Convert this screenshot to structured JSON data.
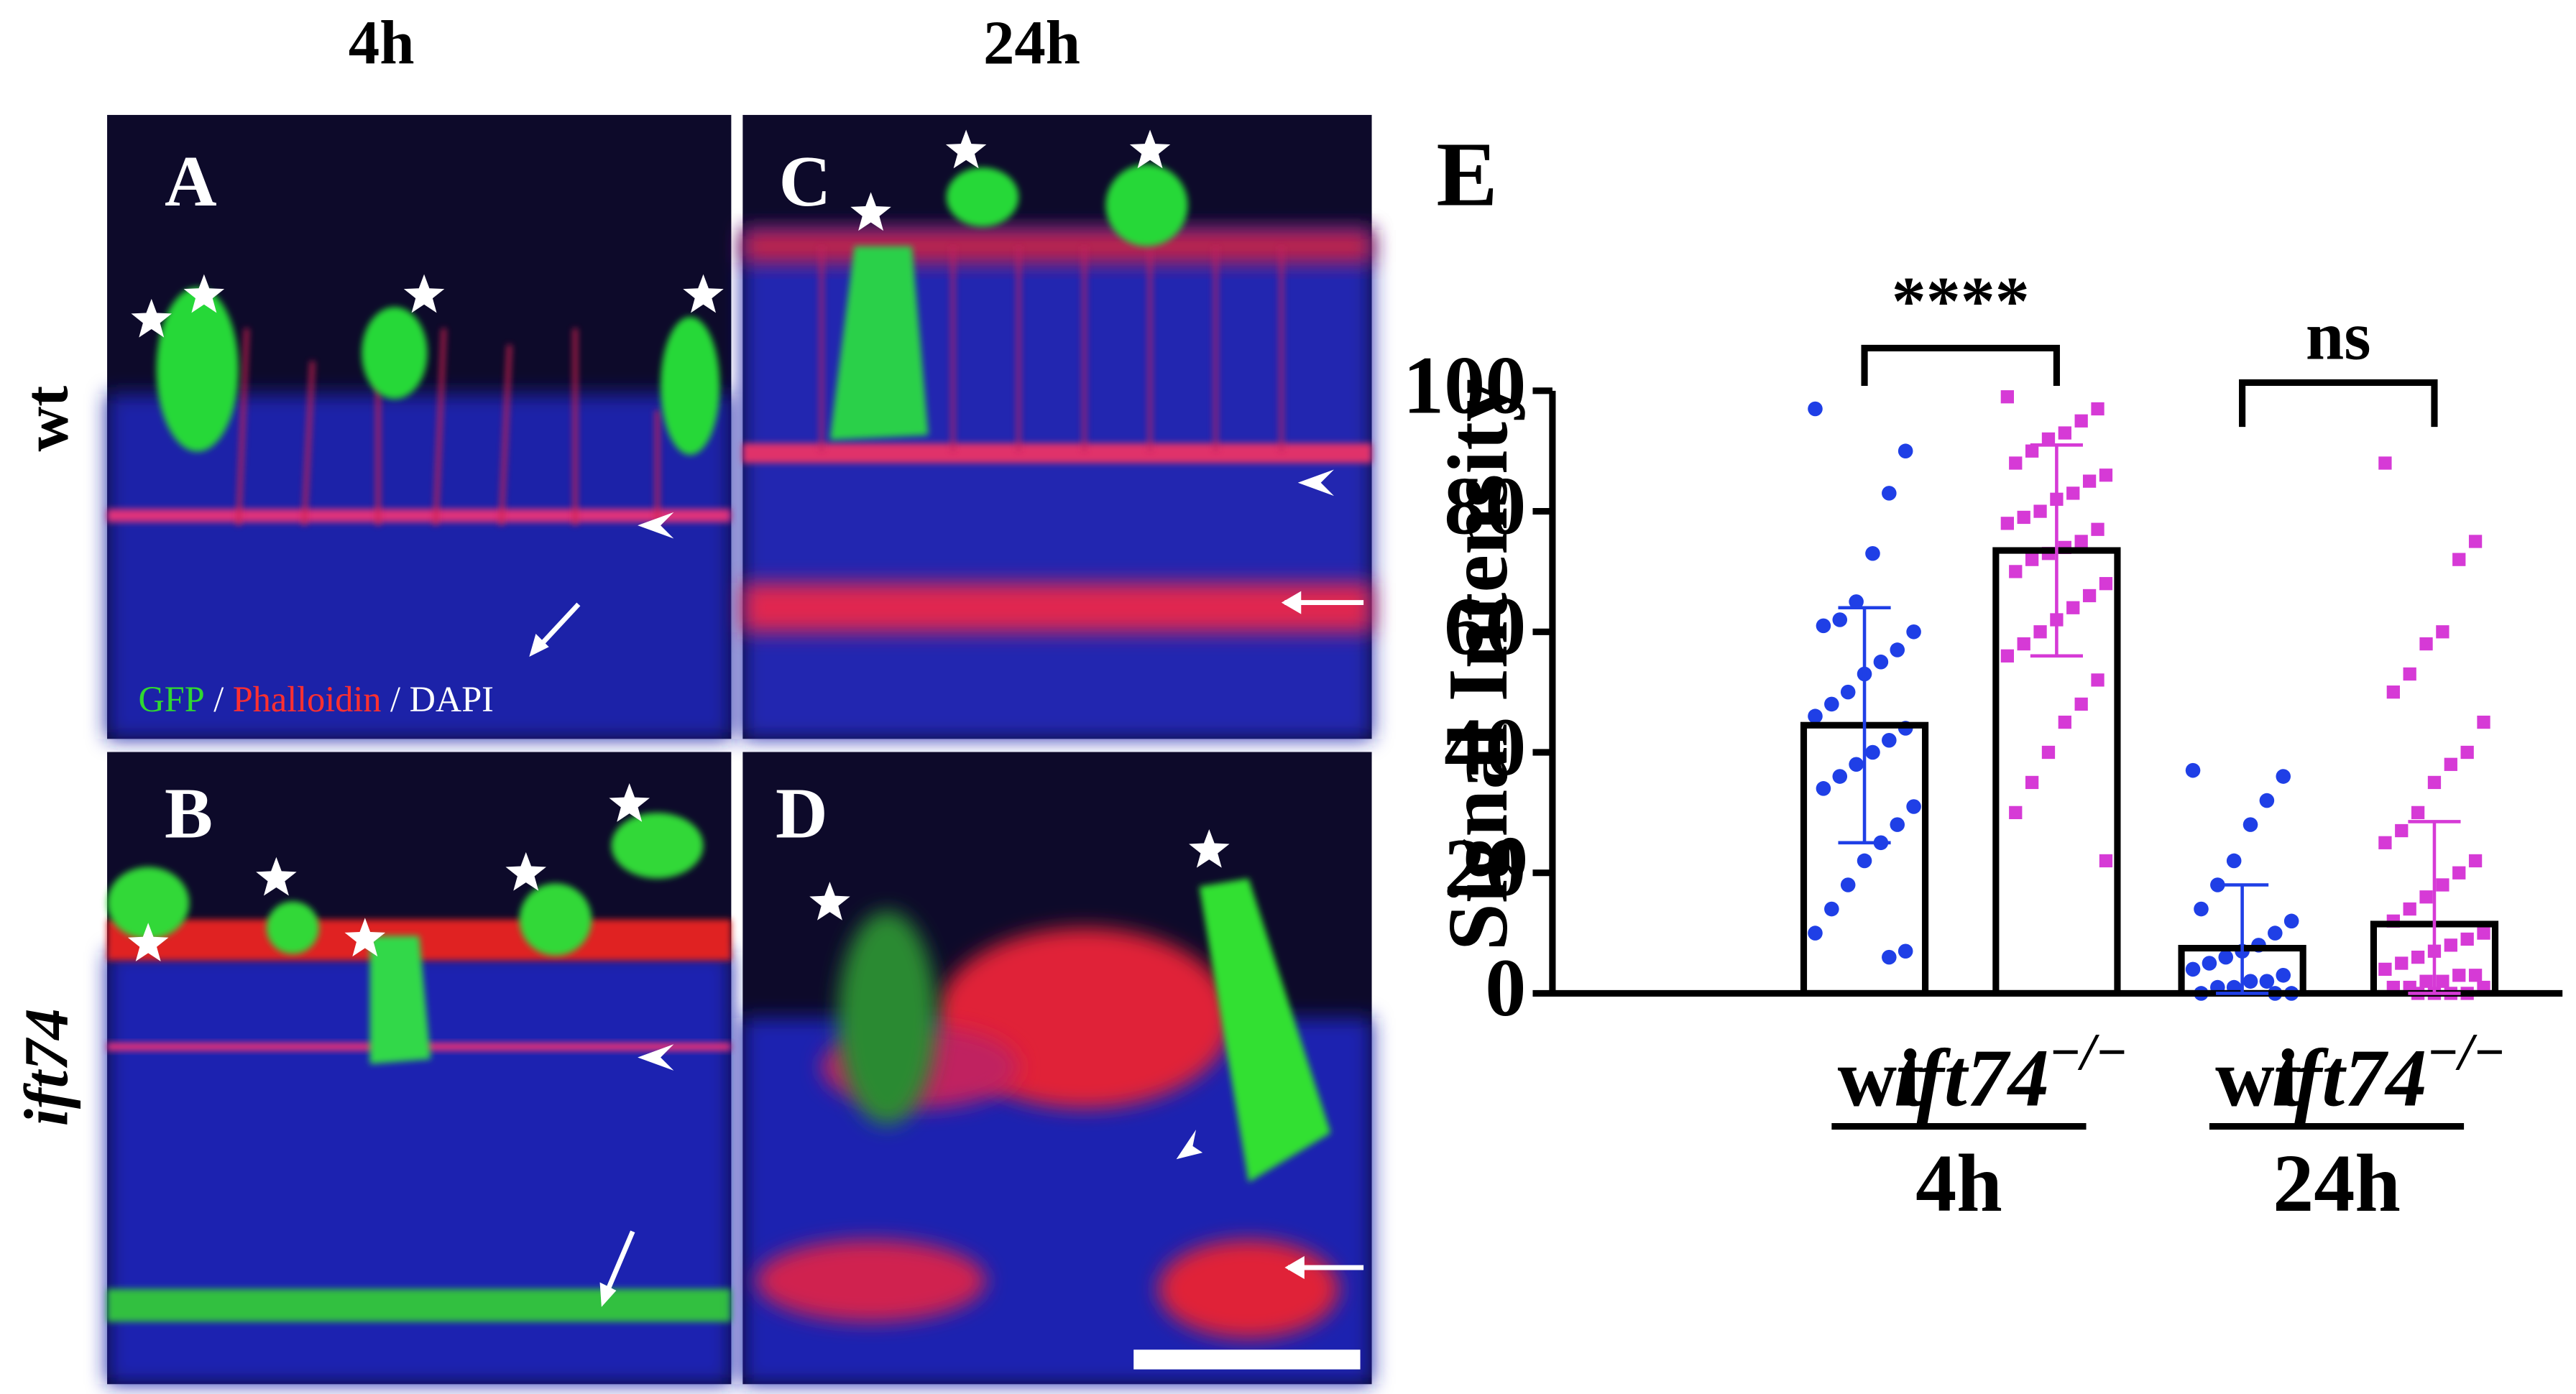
{
  "figure": {
    "column_titles": [
      "4h",
      "24h"
    ],
    "row_labels": [
      "wt",
      "ift74"
    ],
    "panels": [
      "A",
      "C",
      "B",
      "D"
    ],
    "stain_legend": [
      "GFP",
      "/",
      "Phalloidin",
      "/ DAPI"
    ]
  },
  "chart_data": {
    "type": "bar",
    "panel": "E",
    "ylabel": "Signal Intensity",
    "categories": [
      {
        "label": "wt"
      },
      {
        "label": "ift74",
        "sup": "−/−"
      },
      {
        "label": "wt"
      },
      {
        "label": "ift74",
        "sup": "−/−"
      }
    ],
    "groups": [
      "4h",
      "24h"
    ],
    "values": [
      44.5,
      73.5,
      7.5,
      11.5
    ],
    "errors": [
      19.5,
      17.5,
      10.5,
      17
    ],
    "colors": [
      "#1f3fe6",
      "#d63ad6",
      "#1f3fe6",
      "#d63ad6"
    ],
    "points": [
      [
        97,
        90,
        83,
        73,
        65,
        62,
        61,
        60,
        57,
        55,
        53,
        50,
        48,
        46,
        44,
        42,
        40,
        38,
        36,
        34,
        31,
        28,
        25,
        22,
        18,
        14,
        10,
        7,
        6
      ],
      [
        99,
        97,
        95,
        93,
        92,
        90,
        88,
        86,
        85,
        83,
        82,
        80,
        79,
        78,
        77,
        75,
        74,
        73,
        72,
        70,
        68,
        66,
        64,
        62,
        60,
        58,
        56,
        52,
        48,
        45,
        40,
        35,
        30,
        22
      ],
      [
        37,
        36,
        32,
        28,
        22,
        18,
        14,
        12,
        10,
        8,
        7,
        6,
        5,
        4,
        3,
        2,
        2,
        1,
        1,
        0,
        0,
        0
      ],
      [
        88,
        75,
        72,
        60,
        58,
        53,
        50,
        45,
        40,
        38,
        35,
        30,
        27,
        25,
        22,
        20,
        18,
        16,
        14,
        12,
        10,
        9,
        8,
        7,
        6,
        5,
        4,
        3,
        3,
        2,
        2,
        1,
        1,
        1,
        0,
        0,
        0,
        0
      ]
    ],
    "ylim": [
      0,
      100
    ],
    "yticks": [
      0,
      20,
      40,
      60,
      80,
      100
    ],
    "significance": [
      "****",
      "ns"
    ]
  }
}
